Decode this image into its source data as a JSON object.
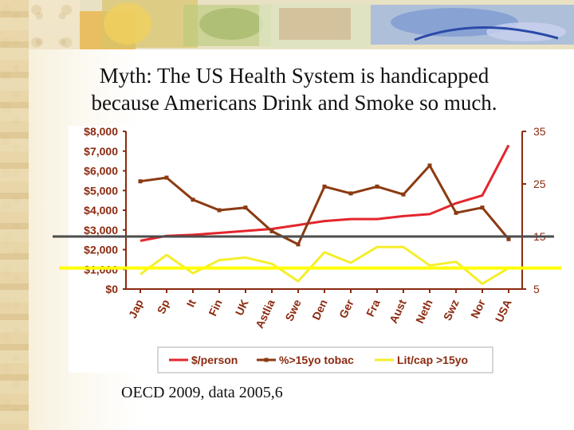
{
  "slide": {
    "title_line1": "Myth: The US Health System is handicapped",
    "title_line2": "because Americans Drink and Smoke so much.",
    "footer": "OECD 2009, data 2005,6"
  },
  "chart_data": {
    "type": "line",
    "categories": [
      "Jap",
      "Sp",
      "It",
      "Fin",
      "UK",
      "Astlia",
      "Swe",
      "Den",
      "Ger",
      "Fra",
      "Aust",
      "Neth",
      "Swz",
      "Nor",
      "USA"
    ],
    "left_axis": {
      "ylim": [
        0,
        8000
      ],
      "ticks": [
        "$0",
        "$1,000",
        "$2,000",
        "$3,000",
        "$4,000",
        "$5,000",
        "$6,000",
        "$7,000",
        "$8,000"
      ],
      "tick_values": [
        0,
        1000,
        2000,
        3000,
        4000,
        5000,
        6000,
        7000,
        8000
      ]
    },
    "right_axis": {
      "ylim": [
        5,
        35
      ],
      "ticks": [
        "5",
        "15",
        "25",
        "35"
      ],
      "tick_values": [
        5,
        15,
        25,
        35
      ]
    },
    "series": [
      {
        "name": "$/person",
        "axis": "left",
        "color": "#e3262c",
        "values": [
          2450,
          2700,
          2750,
          2850,
          2950,
          3050,
          3250,
          3450,
          3550,
          3550,
          3700,
          3800,
          4350,
          4750,
          7300
        ]
      },
      {
        "name": "%>15yo tobac",
        "axis": "right",
        "color": "#8b3a12",
        "values": [
          25.5,
          26.2,
          22,
          20,
          20.5,
          16,
          13.5,
          24.5,
          23.2,
          24.5,
          23,
          28.5,
          19.5,
          20.5,
          14.5
        ]
      },
      {
        "name": "Lit/cap >15yo",
        "axis": "right",
        "color": "#f5ee2c",
        "values": [
          7.8,
          11.5,
          8,
          10.5,
          11,
          9.8,
          6.5,
          12,
          10,
          13,
          13,
          9.5,
          10.2,
          6,
          9
        ]
      }
    ],
    "reference_lines": [
      {
        "axis": "right",
        "value": 15,
        "color": "#555555"
      },
      {
        "axis": "right",
        "value": 9,
        "color": "#ffff00"
      }
    ],
    "legend": [
      "$/person",
      "%>15yo tobac",
      "Lit/cap >15yo"
    ],
    "legend_position": "bottom"
  }
}
